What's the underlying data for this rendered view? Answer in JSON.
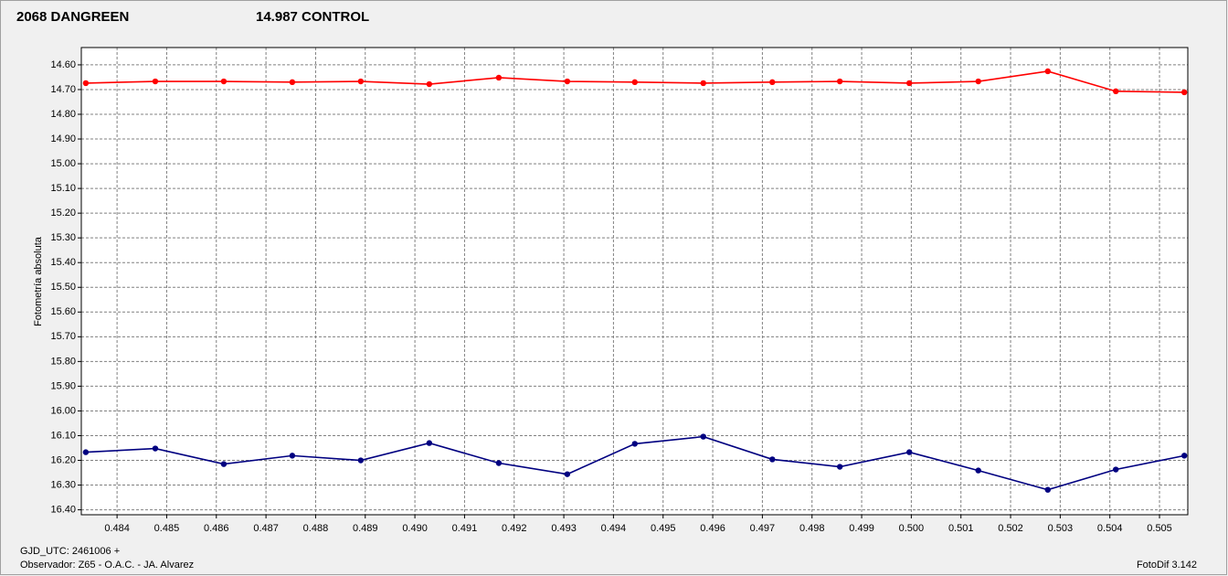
{
  "chart_data": {
    "type": "line",
    "y_label": "Fotometría absoluta",
    "footer_left_1": "GJD_UTC: 2461006 +",
    "footer_left_2": "Observador: Z65 - O.A.C. - JA. Alvarez",
    "footer_right": "FotoDif 3.142",
    "x": [
      0.48337,
      0.48477,
      0.48615,
      0.48753,
      0.48891,
      0.49029,
      0.49169,
      0.49307,
      0.49443,
      0.49581,
      0.4972,
      0.49856,
      0.49996,
      0.50135,
      0.50275,
      0.50412,
      0.5055
    ],
    "series": [
      {
        "name": "2068 DANGREEN",
        "color": "#ff0000",
        "values": [
          14.674,
          14.667,
          14.667,
          14.67,
          14.667,
          14.678,
          14.652,
          14.667,
          14.67,
          14.674,
          14.67,
          14.667,
          14.674,
          14.667,
          14.626,
          14.707,
          14.711
        ]
      },
      {
        "name": "14.987 CONTROL",
        "color": "#000080",
        "values": [
          16.167,
          16.152,
          16.215,
          16.181,
          16.2,
          16.13,
          16.211,
          16.256,
          16.133,
          16.104,
          16.196,
          16.226,
          16.167,
          16.241,
          16.319,
          16.237,
          16.181
        ]
      }
    ],
    "xlim": [
      0.48328,
      0.50557
    ],
    "xticks": [
      0.484,
      0.485,
      0.486,
      0.487,
      0.488,
      0.489,
      {
        "value": 0.49,
        "label": "0.490"
      },
      0.491,
      0.492,
      0.493,
      0.494,
      0.495,
      0.496,
      0.497,
      0.498,
      0.499,
      {
        "value": 0.5,
        "label": "0.500"
      },
      0.501,
      0.502,
      0.503,
      0.504,
      0.505
    ],
    "ylim": [
      16.42,
      14.53
    ],
    "yticks": [
      {
        "value": 14.6,
        "label": "14.60"
      },
      {
        "value": 14.7,
        "label": "14.70"
      },
      {
        "value": 14.8,
        "label": "14.80"
      },
      {
        "value": 14.9,
        "label": "14.90"
      },
      {
        "value": 15.0,
        "label": "15.00"
      },
      {
        "value": 15.1,
        "label": "15.10"
      },
      {
        "value": 15.2,
        "label": "15.20"
      },
      {
        "value": 15.3,
        "label": "15.30"
      },
      {
        "value": 15.4,
        "label": "15.40"
      },
      {
        "value": 15.5,
        "label": "15.50"
      },
      {
        "value": 15.6,
        "label": "15.60"
      },
      {
        "value": 15.7,
        "label": "15.70"
      },
      {
        "value": 15.8,
        "label": "15.80"
      },
      {
        "value": 15.9,
        "label": "15.90"
      },
      {
        "value": 16.0,
        "label": "16.00"
      },
      {
        "value": 16.1,
        "label": "16.10"
      },
      {
        "value": 16.2,
        "label": "16.20"
      },
      {
        "value": 16.3,
        "label": "16.30"
      },
      {
        "value": 16.4,
        "label": "16.40"
      }
    ],
    "grid": true
  }
}
